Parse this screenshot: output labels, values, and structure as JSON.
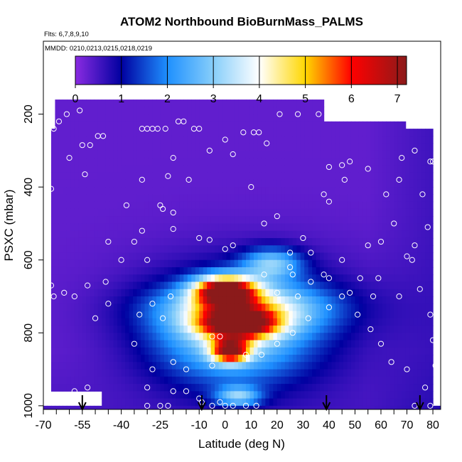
{
  "chart_data": {
    "type": "heatmap",
    "title": "ATOM2 Northbound BioBurnMass_PALMS",
    "subtitle_flights": "Flts: 6,7,8,9,10",
    "subtitle_dates": "MMDD: 0210,0213,0215,0218,0219",
    "xlabel": "Latitude (deg N)",
    "ylabel": "PSXC (mbar)",
    "xlim": [
      -70,
      83
    ],
    "ylim": [
      1010,
      0
    ],
    "x_ticks": [
      "-70",
      "-55",
      "-40",
      "-25",
      "-10",
      "0",
      "10",
      "20",
      "30",
      "40",
      "50",
      "60",
      "70",
      "80"
    ],
    "x_tick_values": [
      -70,
      -55,
      -40,
      -25,
      -10,
      0,
      10,
      20,
      30,
      40,
      50,
      60,
      70,
      80
    ],
    "x_minor_step": 5,
    "y_ticks": [
      "200",
      "400",
      "600",
      "800",
      "1000"
    ],
    "y_tick_values": [
      200,
      400,
      600,
      800,
      1000
    ],
    "colorbar": {
      "min": 0,
      "max": 7.2,
      "ticks": [
        "0",
        "1",
        "2",
        "3",
        "4",
        "5",
        "6",
        "7"
      ],
      "tick_values": [
        0,
        1,
        2,
        3,
        4,
        5,
        6,
        7
      ],
      "colors": [
        "#8a2be2",
        "#0000a0",
        "#1e90ff",
        "#87cefa",
        "#ffffff",
        "#ffd700",
        "#ff0000",
        "#8b1a1a"
      ],
      "stops": [
        0,
        1,
        2,
        3,
        4,
        5,
        6,
        7.2
      ]
    },
    "background_value": 0.3,
    "plumes": [
      {
        "lat": 0,
        "p": 685,
        "sx": 8,
        "sy": 28,
        "amp": 6.0
      },
      {
        "lat": 5,
        "p": 775,
        "sx": 10,
        "sy": 28,
        "amp": 5.0
      },
      {
        "lat": 2,
        "p": 850,
        "sx": 5,
        "sy": 22,
        "amp": 4.8
      },
      {
        "lat": 8,
        "p": 730,
        "sx": 22,
        "sy": 45,
        "amp": 2.3
      },
      {
        "lat": 2,
        "p": 810,
        "sx": 20,
        "sy": 90,
        "amp": 2.2
      },
      {
        "lat": 18,
        "p": 610,
        "sx": 8,
        "sy": 30,
        "amp": 2.2
      },
      {
        "lat": 5,
        "p": 975,
        "sx": 6,
        "sy": 20,
        "amp": 2.2
      },
      {
        "lat": 10,
        "p": 760,
        "sx": 30,
        "sy": 120,
        "amp": 1.0
      }
    ],
    "cutouts": [
      {
        "lat0": -70,
        "lat1": -66.5,
        "p0": 0,
        "p1": 1010
      },
      {
        "lat0": -66.5,
        "lat1": -65,
        "p0": 0,
        "p1": 240
      },
      {
        "lat0": -70,
        "lat1": -48,
        "p0": 958,
        "p1": 1010
      },
      {
        "lat0": -70,
        "lat1": 83,
        "p0": 0,
        "p1": 162
      },
      {
        "lat0": -63,
        "lat1": 38,
        "p0": 0,
        "p1": 168
      },
      {
        "lat0": 38,
        "lat1": 70,
        "p0": 0,
        "p1": 218
      },
      {
        "lat0": 70,
        "lat1": 83,
        "p0": 0,
        "p1": 250
      },
      {
        "lat0": 80,
        "lat1": 83,
        "p0": 0,
        "p1": 1010
      }
    ],
    "points": [
      [
        -66,
        240
      ],
      [
        -64,
        220
      ],
      [
        -61,
        200
      ],
      [
        -56,
        190
      ],
      [
        -60,
        320
      ],
      [
        -55,
        285
      ],
      [
        -52,
        285
      ],
      [
        -49,
        260
      ],
      [
        -47,
        260
      ],
      [
        -54,
        365
      ],
      [
        -67,
        405
      ],
      [
        -32,
        240
      ],
      [
        -30,
        240
      ],
      [
        -28,
        240
      ],
      [
        -26,
        240
      ],
      [
        -23,
        240
      ],
      [
        -18,
        220
      ],
      [
        -16,
        220
      ],
      [
        -12,
        240
      ],
      [
        -10,
        240
      ],
      [
        -6,
        300
      ],
      [
        0,
        270
      ],
      [
        3,
        310
      ],
      [
        7,
        250
      ],
      [
        11,
        250
      ],
      [
        13,
        250
      ],
      [
        16,
        280
      ],
      [
        21,
        200
      ],
      [
        28,
        200
      ],
      [
        36,
        200
      ],
      [
        -20,
        320
      ],
      [
        -22,
        370
      ],
      [
        -32,
        380
      ],
      [
        -14,
        380
      ],
      [
        -25,
        450
      ],
      [
        -20,
        470
      ],
      [
        -32,
        520
      ],
      [
        -20,
        515
      ],
      [
        -10,
        540
      ],
      [
        -6,
        545
      ],
      [
        0,
        570
      ],
      [
        3,
        560
      ],
      [
        10,
        400
      ],
      [
        15,
        500
      ],
      [
        20,
        480
      ],
      [
        25,
        580
      ],
      [
        33,
        580
      ],
      [
        15,
        640
      ],
      [
        20,
        690
      ],
      [
        25,
        620
      ],
      [
        26,
        640
      ],
      [
        30,
        540
      ],
      [
        28,
        700
      ],
      [
        33,
        660
      ],
      [
        38,
        640
      ],
      [
        40,
        650
      ],
      [
        45,
        600
      ],
      [
        48,
        690
      ],
      [
        52,
        650
      ],
      [
        57,
        700
      ],
      [
        59,
        650
      ],
      [
        65,
        500
      ],
      [
        67,
        700
      ],
      [
        70,
        590
      ],
      [
        -67,
        670
      ],
      [
        -66,
        700
      ],
      [
        -62,
        690
      ],
      [
        -53,
        670
      ],
      [
        -46,
        660
      ],
      [
        -30,
        600
      ],
      [
        -21,
        700
      ],
      [
        -24,
        760
      ],
      [
        -28,
        720
      ],
      [
        -33,
        750
      ],
      [
        -45,
        720
      ],
      [
        -50,
        760
      ],
      [
        -58,
        700
      ],
      [
        -24,
        460
      ],
      [
        -35,
        830
      ],
      [
        -28,
        900
      ],
      [
        -30,
        950
      ],
      [
        -20,
        960
      ],
      [
        -15,
        960
      ],
      [
        -9,
        990
      ],
      [
        -5,
        1000
      ],
      [
        0,
        1000
      ],
      [
        3,
        1000
      ],
      [
        8,
        1000
      ],
      [
        12,
        1000
      ],
      [
        -22,
        1000
      ],
      [
        -25,
        1000
      ],
      [
        -30,
        1000
      ],
      [
        38,
        420
      ],
      [
        40,
        440
      ],
      [
        45,
        340
      ],
      [
        40,
        345
      ],
      [
        46,
        380
      ],
      [
        48,
        330
      ],
      [
        55,
        350
      ],
      [
        62,
        420
      ],
      [
        67,
        380
      ],
      [
        68,
        320
      ],
      [
        73,
        300
      ],
      [
        76,
        420
      ],
      [
        79,
        330
      ],
      [
        80,
        330
      ],
      [
        78,
        510
      ],
      [
        73,
        560
      ],
      [
        75,
        680
      ],
      [
        79,
        750
      ],
      [
        80,
        820
      ],
      [
        81,
        890
      ],
      [
        77,
        950
      ],
      [
        73,
        1000
      ],
      [
        79,
        1000
      ],
      [
        -5,
        810
      ],
      [
        -2,
        810
      ],
      [
        -5,
        890
      ],
      [
        -2,
        990
      ],
      [
        -10,
        980
      ],
      [
        -15,
        900
      ],
      [
        -20,
        880
      ],
      [
        8,
        860
      ],
      [
        14,
        860
      ],
      [
        20,
        830
      ],
      [
        26,
        800
      ],
      [
        32,
        760
      ],
      [
        40,
        730
      ],
      [
        45,
        700
      ],
      [
        51,
        750
      ],
      [
        56,
        790
      ],
      [
        60,
        830
      ],
      [
        64,
        880
      ],
      [
        70,
        900
      ],
      [
        72,
        600
      ],
      [
        60,
        550
      ],
      [
        55,
        560
      ],
      [
        -53,
        950
      ],
      [
        -58,
        960
      ],
      [
        -40,
        600
      ],
      [
        -45,
        550
      ],
      [
        -35,
        550
      ],
      [
        -38,
        450
      ]
    ],
    "arrows": [
      -55,
      -9,
      39,
      75
    ]
  }
}
